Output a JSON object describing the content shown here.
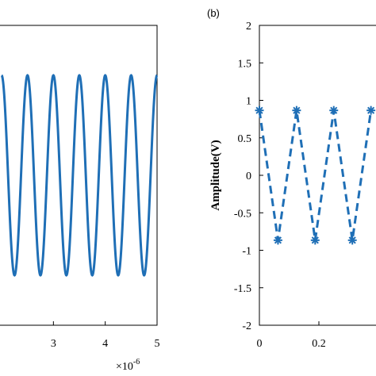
{
  "chart_data": [
    {
      "type": "line",
      "panel_label": "",
      "x_multiplier": "×10",
      "x_multiplier_exp": "-6",
      "xlim": [
        2.0,
        5.0
      ],
      "ylim": [
        -1.5,
        1.5
      ],
      "x_ticks": [
        "3",
        "4",
        "5"
      ],
      "y_ticks": [],
      "xlabel": "",
      "ylabel": "",
      "series": [
        {
          "frequency_MHz": 2,
          "amplitude_V": 1,
          "color": "#1f6fb6",
          "style": "solid"
        }
      ]
    },
    {
      "type": "line",
      "panel_label": "(b)",
      "xlim": [
        0,
        0.45
      ],
      "ylim": [
        -2,
        2
      ],
      "x_ticks": [
        "0",
        "0.2",
        "0"
      ],
      "y_ticks": [
        "2",
        "1.5",
        "1",
        "0.5",
        "0",
        "-0.5",
        "-1",
        "-1.5",
        "-2"
      ],
      "xlabel": "",
      "ylabel": "Amplitude(V)",
      "grid": false,
      "series": [
        {
          "color": "#1f6fb6",
          "style": "dashed",
          "marker": "*",
          "x": [
            0,
            0.0625,
            0.125,
            0.1875,
            0.25,
            0.3125,
            0.375
          ],
          "y": [
            0.866,
            -0.866,
            0.866,
            -0.866,
            0.866,
            -0.866,
            0.866
          ]
        }
      ]
    }
  ],
  "colors": {
    "line": "#1f6fb6",
    "axes": "#000000"
  }
}
